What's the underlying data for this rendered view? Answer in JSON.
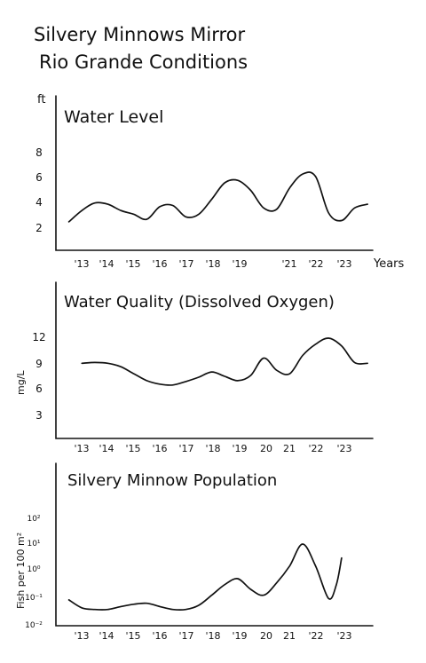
{
  "title_lines": [
    "Silvery Minnows Mirror",
    "Rio Grande Conditions"
  ],
  "chart_data": [
    {
      "type": "line",
      "title": "Water Level",
      "ylabel": "ft",
      "xlabel": "Years",
      "x_tick_labels": [
        "'13",
        "'14",
        "'15",
        "'16",
        "'17",
        "'18",
        "'19",
        "'21",
        "'22",
        "'23"
      ],
      "y_tick_labels": [
        "2",
        "4",
        "6",
        "8"
      ],
      "ylim": [
        0,
        10
      ],
      "x": [
        2012.5,
        2013.0,
        2013.5,
        2014.0,
        2014.5,
        2015.0,
        2015.5,
        2016.0,
        2016.5,
        2017.0,
        2017.5,
        2018.0,
        2018.5,
        2019.0,
        2019.5,
        2020.0,
        2020.5,
        2021.0,
        2021.5,
        2022.0,
        2022.5,
        2023.0,
        2023.5,
        2024.0
      ],
      "values": [
        2.5,
        3.4,
        4.0,
        3.9,
        3.4,
        3.1,
        2.7,
        3.7,
        3.8,
        2.9,
        3.1,
        4.3,
        5.6,
        5.8,
        5.0,
        3.6,
        3.5,
        5.2,
        6.3,
        6.1,
        3.2,
        2.6,
        3.6,
        3.9
      ],
      "grid": false
    },
    {
      "type": "line",
      "title": "Water Quality (Dissolved Oxygen)",
      "ylabel": "mg/L",
      "x_tick_labels": [
        "'13",
        "'14",
        "'15",
        "'16",
        "'17",
        "'18",
        "'19",
        "20",
        "21",
        "'22",
        "'23"
      ],
      "y_tick_labels": [
        "3",
        "6",
        "9",
        "12"
      ],
      "ylim": [
        0,
        14
      ],
      "x": [
        2013.0,
        2013.5,
        2014.0,
        2014.5,
        2015.0,
        2015.5,
        2016.0,
        2016.5,
        2017.0,
        2017.5,
        2018.0,
        2018.5,
        2019.0,
        2019.5,
        2020.0,
        2020.5,
        2021.0,
        2021.5,
        2022.0,
        2022.5,
        2023.0,
        2023.5,
        2024.0
      ],
      "values": [
        9.0,
        9.1,
        9.0,
        8.6,
        7.8,
        7.0,
        6.6,
        6.5,
        6.9,
        7.4,
        8.0,
        7.5,
        7.0,
        7.6,
        9.6,
        8.2,
        7.8,
        9.9,
        11.2,
        11.9,
        11.0,
        9.1,
        9.0
      ],
      "grid": false
    },
    {
      "type": "line",
      "title": "Silvery Minnow Population",
      "ylabel": "Fish per 100 m²",
      "x_tick_labels": [
        "'13",
        "'14",
        "'15",
        "'16",
        "'17",
        "'18",
        "'19",
        "20",
        "21",
        "'22",
        "'23"
      ],
      "y_tick_labels": [
        "10⁻²",
        "10⁻¹",
        "10⁰",
        "10¹",
        "10²"
      ],
      "y_scale": "log",
      "ylim": [
        0.01,
        100
      ],
      "x": [
        2012.5,
        2013.0,
        2013.5,
        2014.0,
        2014.5,
        2015.0,
        2015.5,
        2016.0,
        2016.5,
        2017.0,
        2017.5,
        2018.0,
        2018.5,
        2019.0,
        2019.5,
        2020.0,
        2020.5,
        2021.0,
        2021.5,
        2022.0,
        2022.5,
        2022.8,
        2023.0
      ],
      "values": [
        0.08,
        0.04,
        0.035,
        0.035,
        0.045,
        0.055,
        0.06,
        0.045,
        0.035,
        0.035,
        0.05,
        0.12,
        0.3,
        0.5,
        0.2,
        0.12,
        0.35,
        1.5,
        10.0,
        1.5,
        0.09,
        0.3,
        3.0
      ],
      "grid": false
    }
  ]
}
